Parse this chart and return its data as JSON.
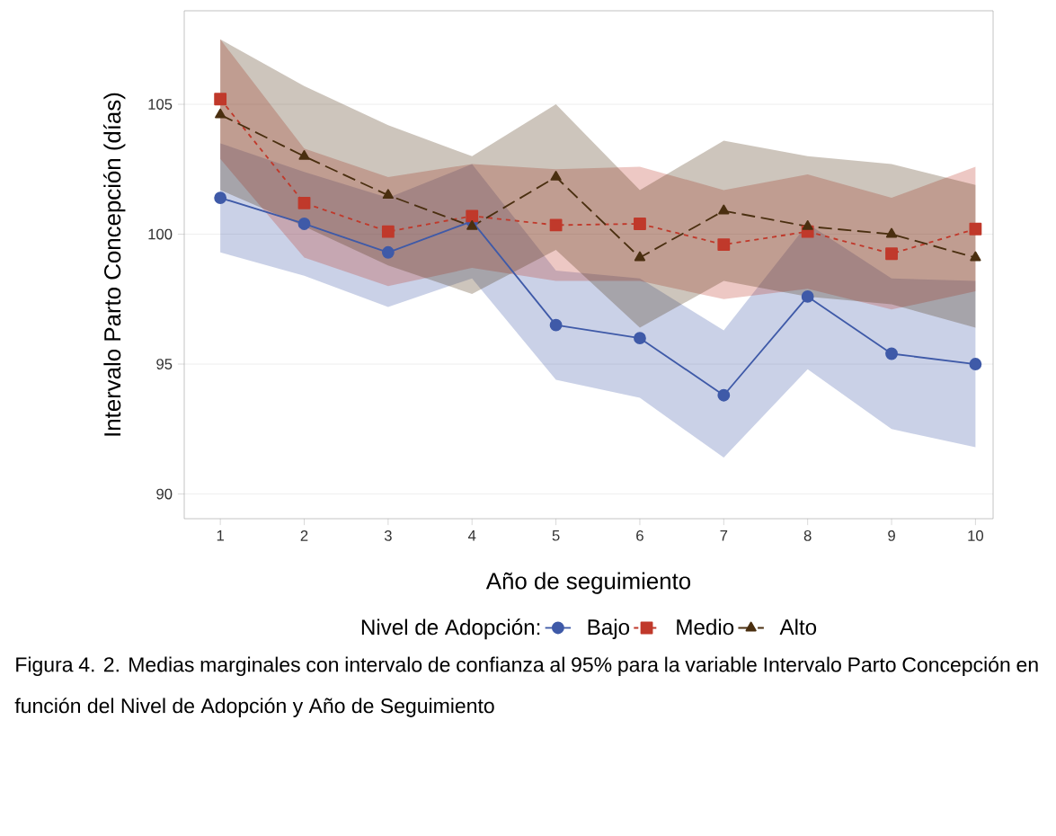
{
  "chart_data": {
    "type": "line",
    "xlabel": "Año de seguimiento",
    "ylabel": "Intervalo Parto Concepción (días)",
    "legend_title": "Nivel de Adopción:",
    "legend": "bottom",
    "grid": "y",
    "x": [
      1,
      2,
      3,
      4,
      5,
      6,
      7,
      8,
      9,
      10
    ],
    "xlim": [
      0.57,
      10.21
    ],
    "xticks": [
      1,
      2,
      3,
      4,
      5,
      6,
      7,
      8,
      9,
      10
    ],
    "ylim": [
      89.05,
      108.6
    ],
    "yticks": [
      90,
      95,
      100,
      105
    ],
    "series": [
      {
        "name": "Bajo",
        "color": "#3f5aa8",
        "marker": "circle",
        "line_style": "solid",
        "values": [
          101.4,
          100.4,
          99.3,
          100.5,
          96.5,
          96.0,
          93.8,
          97.6,
          95.4,
          95.0
        ],
        "lower": [
          99.3,
          98.4,
          97.2,
          98.3,
          94.4,
          93.7,
          91.4,
          94.8,
          92.5,
          91.8
        ],
        "upper": [
          103.5,
          102.4,
          101.4,
          102.7,
          98.6,
          98.3,
          96.3,
          100.4,
          98.3,
          98.2
        ]
      },
      {
        "name": "Medio",
        "color": "#c0392b",
        "marker": "square",
        "line_style": "dotted",
        "values": [
          105.2,
          101.2,
          100.1,
          100.7,
          100.35,
          100.4,
          99.6,
          100.1,
          99.25,
          100.2
        ],
        "lower": [
          102.9,
          99.1,
          98.0,
          98.7,
          98.2,
          98.2,
          97.5,
          97.9,
          97.1,
          97.8
        ],
        "upper": [
          107.5,
          103.3,
          102.2,
          102.7,
          102.5,
          102.6,
          101.7,
          102.3,
          101.4,
          102.6
        ]
      },
      {
        "name": "Alto",
        "color": "#4a2f10",
        "marker": "triangle",
        "line_style": "dashed",
        "values": [
          104.6,
          103.0,
          101.5,
          100.3,
          102.2,
          99.1,
          100.9,
          100.3,
          100.0,
          99.1
        ],
        "lower": [
          101.7,
          100.3,
          98.8,
          97.7,
          99.4,
          96.4,
          98.2,
          97.6,
          97.3,
          96.4
        ],
        "upper": [
          107.5,
          105.7,
          104.2,
          103.0,
          105.0,
          101.7,
          103.6,
          103.0,
          102.7,
          101.9
        ]
      }
    ],
    "annotations": [
      "Figura 4. 2. Medias marginales con intervalo de confianza al 95% para la variable Intervalo Parto Concepción en función del Nivel de Adopción y Año de Seguimiento"
    ]
  }
}
